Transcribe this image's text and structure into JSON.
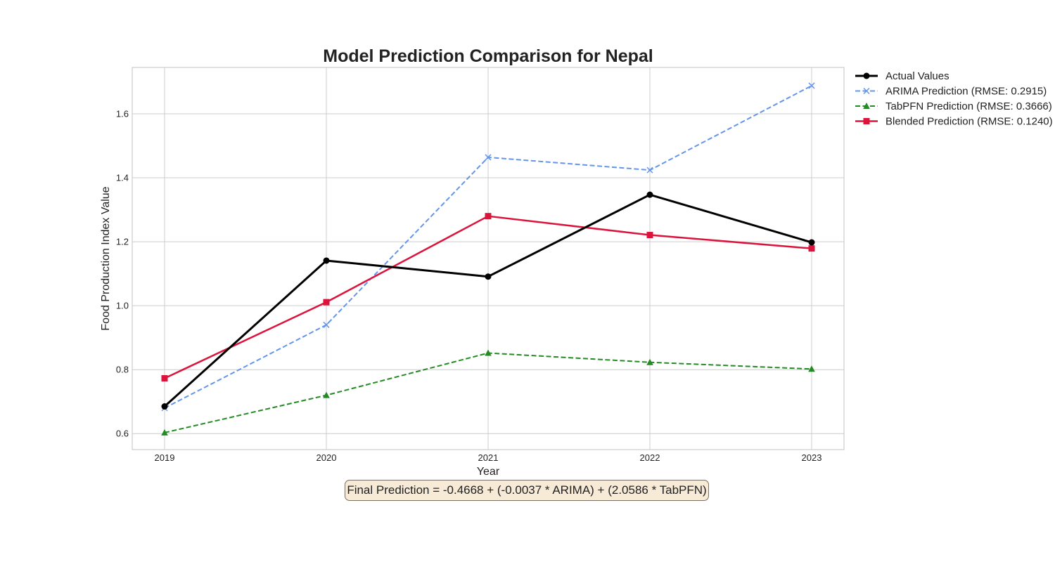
{
  "chart_data": {
    "type": "line",
    "title": "Model Prediction Comparison for Nepal",
    "xlabel": "Year",
    "ylabel": "Food Production Index Value",
    "x": [
      2019,
      2020,
      2021,
      2022,
      2023
    ],
    "xlim": [
      2018.8,
      2023.2
    ],
    "ylim": [
      0.55,
      1.745
    ],
    "yticks": [
      0.6,
      0.8,
      1.0,
      1.2,
      1.4,
      1.6
    ],
    "grid": true,
    "legend_position": "outside-top-right",
    "series": [
      {
        "name": "Actual Values",
        "color": "#000000",
        "style": "solid",
        "marker": "circle",
        "values": [
          0.685,
          1.141,
          1.091,
          1.347,
          1.198
        ]
      },
      {
        "name": "ARIMA Prediction (RMSE: 0.2915)",
        "color": "#6495ed",
        "style": "dashed",
        "marker": "x",
        "values": [
          0.68,
          0.94,
          1.464,
          1.424,
          1.688
        ]
      },
      {
        "name": "TabPFN Prediction (RMSE: 0.3666)",
        "color": "#228b22",
        "style": "dashed",
        "marker": "triangle",
        "values": [
          0.603,
          0.72,
          0.852,
          0.823,
          0.802
        ]
      },
      {
        "name": "Blended Prediction (RMSE: 0.1240)",
        "color": "#dc143c",
        "style": "solid",
        "marker": "square",
        "values": [
          0.773,
          1.011,
          1.28,
          1.221,
          1.179
        ]
      }
    ],
    "annotation": "Final Prediction = -0.4668 + (-0.0037 * ARIMA) + (2.0586 * TabPFN)"
  }
}
